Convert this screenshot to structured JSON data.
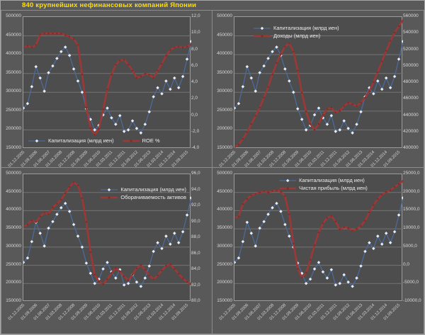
{
  "title": "840 крупнейших нефинансовых компаний Японии",
  "colors": {
    "background": "#595959",
    "plot_background": "#4d4d4d",
    "gridline": "#747474",
    "plot_border": "#9c9c9c",
    "blue_line": "#4a6b9c",
    "blue_marker": "#e9eef6",
    "red_line": "#9d3836",
    "red_marker": "#7c2b29",
    "axis_text": "#d9d9d9",
    "title_text": "#ffdf00",
    "legend_text": "#ededed"
  },
  "x_tick_labels": [
    "01.12.2005",
    "01.09.2006",
    "01.06.2007",
    "01.03.2008",
    "01.12.2008",
    "01.09.2009",
    "01.06.2010",
    "01.03.2011",
    "01.12.2011",
    "01.09.2012",
    "01.06.2013",
    "01.03.2014",
    "01.12.2014",
    "01.09.2015"
  ],
  "chart_data": [
    {
      "type": "line",
      "position": "top-left",
      "legend_pos": "bottom-left",
      "left_axis": {
        "min": 150000,
        "max": 500000,
        "ticks": [
          "500000",
          "450000",
          "400000",
          "350000",
          "300000",
          "250000",
          "200000",
          "150000"
        ]
      },
      "right_axis": {
        "min": -4,
        "max": 12,
        "ticks": [
          "12,0",
          "10,0",
          "8,0",
          "6,0",
          "4,0",
          "2,0",
          "0,0",
          "-2,0",
          "-4,0"
        ]
      },
      "series": [
        {
          "name": "Капитализация (млрд иен)",
          "axis": "left",
          "role": "blue",
          "values": [
            258000,
            270000,
            315000,
            368000,
            338000,
            303000,
            352000,
            370000,
            390000,
            408000,
            420000,
            398000,
            362000,
            330000,
            300000,
            256000,
            228000,
            200000,
            212000,
            240000,
            258000,
            232000,
            215000,
            238000,
            196000,
            200000,
            224000,
            204000,
            192000,
            215000,
            248000,
            288000,
            312000,
            296000,
            330000,
            308000,
            338000,
            312000,
            342000,
            388000,
            435000
          ]
        },
        {
          "name": "ROE %",
          "axis": "right",
          "role": "red",
          "values": [
            8.3,
            8.5,
            8.3,
            8.6,
            9.9,
            10,
            10,
            10,
            10,
            10,
            9.8,
            9.6,
            9.3,
            8.6,
            5,
            1,
            -1.5,
            -2.3,
            -1.6,
            0.8,
            3.2,
            5,
            6.2,
            6.7,
            6.8,
            6.2,
            5.5,
            4.6,
            4.8,
            5.1,
            5,
            4.6,
            5.5,
            6.3,
            7.3,
            8,
            8.3,
            8.4,
            8.3,
            8.4,
            8.7
          ]
        }
      ]
    },
    {
      "type": "line",
      "position": "top-right",
      "legend_pos": "top-left",
      "left_axis": {
        "min": 150000,
        "max": 500000,
        "ticks": [
          "500000",
          "450000",
          "400000",
          "350000",
          "300000",
          "250000",
          "200000",
          "150000"
        ]
      },
      "right_axis": {
        "min": 400000,
        "max": 560000,
        "ticks": [
          "560000",
          "540000",
          "520000",
          "500000",
          "480000",
          "460000",
          "440000",
          "420000",
          "400000"
        ]
      },
      "series": [
        {
          "name": "Капитализация (млрд иен)",
          "axis": "left",
          "role": "blue",
          "values": [
            258000,
            270000,
            315000,
            368000,
            338000,
            303000,
            352000,
            370000,
            390000,
            408000,
            420000,
            398000,
            362000,
            330000,
            300000,
            256000,
            228000,
            200000,
            212000,
            240000,
            258000,
            232000,
            215000,
            238000,
            196000,
            200000,
            224000,
            204000,
            192000,
            215000,
            248000,
            288000,
            312000,
            296000,
            330000,
            308000,
            338000,
            312000,
            342000,
            388000,
            435000
          ]
        },
        {
          "name": "Доходы (млрд иен)",
          "axis": "right",
          "role": "red",
          "values": [
            402000,
            405000,
            412000,
            420000,
            430000,
            440000,
            450000,
            462000,
            475000,
            490000,
            504000,
            515000,
            524000,
            528000,
            518000,
            495000,
            468000,
            445000,
            430000,
            423000,
            430000,
            441000,
            448000,
            450000,
            444000,
            446000,
            452000,
            456000,
            454000,
            452000,
            456000,
            462000,
            470000,
            481000,
            493000,
            506000,
            519000,
            531000,
            541000,
            549000,
            556000
          ]
        }
      ]
    },
    {
      "type": "line",
      "position": "bottom-left",
      "legend_pos": "top-right",
      "left_axis": {
        "min": 150000,
        "max": 500000,
        "ticks": [
          "500000",
          "450000",
          "400000",
          "350000",
          "300000",
          "250000",
          "200000",
          "150000"
        ]
      },
      "right_axis": {
        "min": 80,
        "max": 96,
        "ticks": [
          "96,0",
          "94,0",
          "92,0",
          "90,0",
          "88,0",
          "86,0",
          "84,0",
          "82,0",
          "80,0"
        ]
      },
      "series": [
        {
          "name": "Капитализация (млрд иен)",
          "axis": "left",
          "role": "blue",
          "values": [
            258000,
            270000,
            315000,
            368000,
            338000,
            303000,
            352000,
            370000,
            390000,
            408000,
            420000,
            398000,
            362000,
            330000,
            300000,
            256000,
            228000,
            200000,
            212000,
            240000,
            258000,
            232000,
            215000,
            238000,
            196000,
            200000,
            224000,
            204000,
            192000,
            215000,
            248000,
            288000,
            312000,
            296000,
            330000,
            308000,
            338000,
            312000,
            342000,
            388000,
            435000
          ]
        },
        {
          "name": "Оборачиваемость активов",
          "axis": "right",
          "role": "red",
          "values": [
            89.4,
            89.7,
            90.2,
            90,
            90.7,
            91.2,
            91,
            91.8,
            92.3,
            92.8,
            93.6,
            94.4,
            95,
            94.6,
            93,
            90,
            86.2,
            83.4,
            82.5,
            82.2,
            82.8,
            83.6,
            84.2,
            83.8,
            83.2,
            82.7,
            83.4,
            84.2,
            84.6,
            84,
            83.3,
            82.8,
            83.3,
            83.9,
            84.5,
            84.7,
            84.1,
            83.5,
            82.9,
            82.5,
            82.2
          ]
        }
      ]
    },
    {
      "type": "line",
      "position": "bottom-right",
      "legend_pos": "top-center",
      "left_axis": {
        "min": 150000,
        "max": 500000,
        "ticks": [
          "500000",
          "450000",
          "400000",
          "350000",
          "300000",
          "250000",
          "200000",
          "150000"
        ]
      },
      "right_axis": {
        "min": -10000,
        "max": 25000,
        "ticks": [
          "25000,0",
          "20000,0",
          "15000,0",
          "10000,0",
          "5000,0",
          "0,0",
          "-5000,0",
          "-10000,0"
        ]
      },
      "series": [
        {
          "name": "Капитализация (млрд иен)",
          "axis": "left",
          "role": "blue",
          "values": [
            258000,
            270000,
            315000,
            368000,
            338000,
            303000,
            352000,
            370000,
            390000,
            408000,
            420000,
            398000,
            362000,
            330000,
            300000,
            256000,
            228000,
            200000,
            212000,
            240000,
            258000,
            232000,
            215000,
            238000,
            196000,
            200000,
            224000,
            204000,
            192000,
            215000,
            248000,
            288000,
            312000,
            296000,
            330000,
            308000,
            338000,
            312000,
            342000,
            388000,
            435000
          ]
        },
        {
          "name": "Чистая прибыль (млрд иен)",
          "axis": "right",
          "role": "red",
          "values": [
            13000,
            13400,
            16800,
            18200,
            19200,
            19600,
            20000,
            20300,
            20000,
            20400,
            20600,
            20200,
            19000,
            14000,
            6000,
            -1000,
            -3300,
            -2000,
            1500,
            5500,
            9000,
            11500,
            13000,
            13500,
            12000,
            9800,
            10500,
            10200,
            9500,
            10000,
            10800,
            12200,
            14500,
            16500,
            18200,
            19400,
            20100,
            20600,
            21500,
            22300,
            23200
          ]
        }
      ]
    }
  ]
}
